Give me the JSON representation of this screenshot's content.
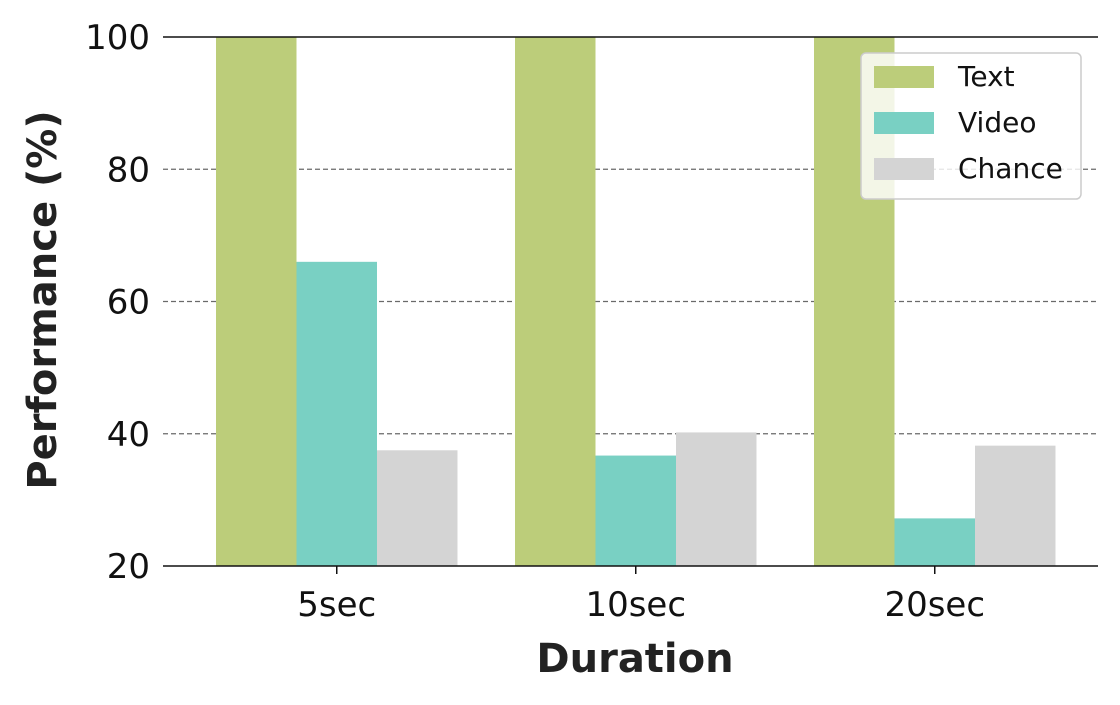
{
  "chart_data": {
    "type": "bar",
    "categories": [
      "5sec",
      "10sec",
      "20sec"
    ],
    "series": [
      {
        "name": "Text",
        "color": "#bccd7a",
        "values": [
          100,
          100,
          100
        ]
      },
      {
        "name": "Video",
        "color": "#79d0c3",
        "values": [
          66,
          36.7,
          27.2
        ]
      },
      {
        "name": "Chance",
        "color": "#d4d4d4",
        "values": [
          37.5,
          40.2,
          38.2
        ]
      }
    ],
    "xlabel": "Duration",
    "ylabel": "Performance (%)",
    "ylim": [
      20,
      100
    ],
    "yticks": [
      20,
      40,
      60,
      80,
      100
    ],
    "grid": "horizontal-dashed",
    "legend_position": "top-right"
  }
}
